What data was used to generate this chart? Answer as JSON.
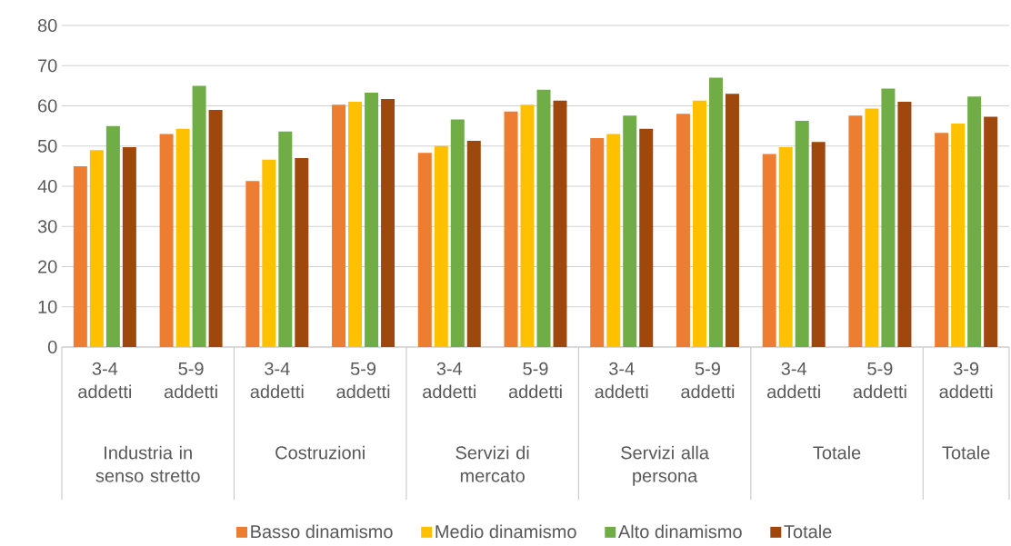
{
  "chart_data": {
    "type": "bar",
    "categories": [
      "3-4 addetti",
      "5-9 addetti",
      "3-4 addetti",
      "5-9 addetti",
      "3-4 addetti",
      "5-9 addetti",
      "3-4 addetti",
      "5-9 addetti",
      "3-4 addetti",
      "5-9 addetti",
      "3-9 addetti"
    ],
    "annotations": [
      "Industria in senso stretto",
      "Costruzioni",
      "Servizi di mercato",
      "Servizi alla persona",
      "Totale",
      "Totale"
    ],
    "series": [
      {
        "name": "Basso dinamismo",
        "color": "#ed7d31",
        "values": [
          45,
          53,
          41.3,
          60.3,
          48.3,
          58.6,
          52,
          58,
          48,
          57.6,
          53.3
        ]
      },
      {
        "name": "Medio dinamismo",
        "color": "#ffc000",
        "values": [
          49,
          54.3,
          46.6,
          61,
          50,
          60.3,
          53,
          61.3,
          49.7,
          59.3,
          55.6
        ]
      },
      {
        "name": "Alto dinamismo",
        "color": "#70ad47",
        "values": [
          55,
          65,
          53.6,
          63.3,
          56.6,
          64,
          57.6,
          67,
          56.3,
          64.3,
          62.3
        ]
      },
      {
        "name": "Totale",
        "color": "#9e480e",
        "values": [
          49.7,
          59,
          47,
          61.7,
          51.3,
          61.3,
          54.3,
          63,
          51,
          61,
          57.3
        ]
      }
    ],
    "ylim": [
      0,
      80
    ],
    "yticks": [
      0,
      10,
      20,
      30,
      40,
      50,
      60,
      70,
      80
    ],
    "grid": "y",
    "legend": "bottom"
  }
}
